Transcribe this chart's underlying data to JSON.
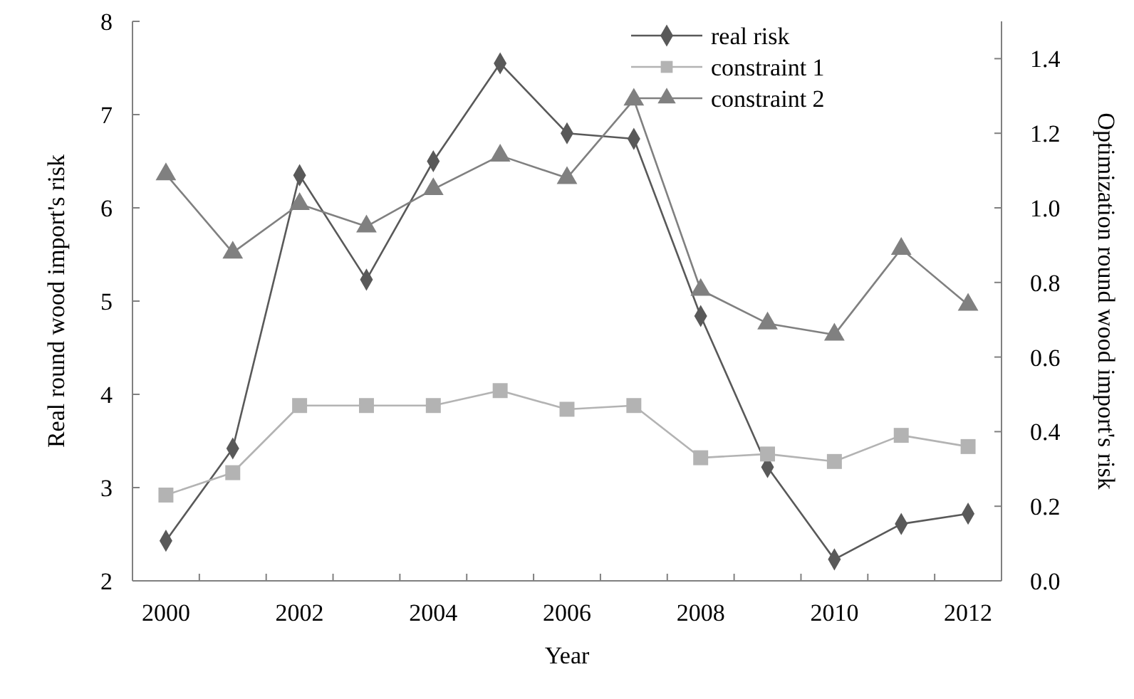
{
  "chart_data": {
    "type": "line",
    "xlabel": "Year",
    "ylabel": "Real round wood import's risk",
    "y2label": "Optimization round wood import's risk",
    "categories": [
      "2000",
      null,
      "2002",
      null,
      "2004",
      null,
      "2006",
      null,
      "2008",
      null,
      "2010",
      null,
      "2012"
    ],
    "series": [
      {
        "name": "real risk",
        "color": "#595959",
        "marker": "diamond",
        "values": [
          2.43,
          3.42,
          6.35,
          5.23,
          6.5,
          7.55,
          6.8,
          6.74,
          4.84,
          3.22,
          2.23,
          2.61,
          2.72
        ]
      },
      {
        "name": "constraint 1",
        "color": "#b3b3b3",
        "marker": "square",
        "axis": "y2",
        "values": [
          0.23,
          0.29,
          0.47,
          0.47,
          0.47,
          0.51,
          0.46,
          0.47,
          0.33,
          0.34,
          0.32,
          0.39,
          0.36
        ]
      },
      {
        "name": "constraint 2",
        "color": "#808080",
        "marker": "triangle",
        "axis": "y2",
        "values": [
          1.09,
          0.88,
          1.01,
          0.95,
          1.05,
          1.14,
          1.08,
          1.29,
          0.78,
          0.69,
          0.66,
          0.89,
          0.74
        ]
      }
    ],
    "ylim": [
      2,
      8
    ],
    "yticks": [
      2,
      3,
      4,
      5,
      6,
      7,
      8
    ],
    "y2lim": [
      0,
      1.5
    ],
    "y2ticks": [
      {
        "value": 0,
        "label": "0.0"
      },
      {
        "value": 0.2,
        "label": "0.2"
      },
      {
        "value": 0.4,
        "label": "0.4"
      },
      {
        "value": 0.6,
        "label": "0.6"
      },
      {
        "value": 0.8,
        "label": "0.8"
      },
      {
        "value": 1,
        "label": "1.0"
      },
      {
        "value": 1.2,
        "label": "1.2"
      },
      {
        "value": 1.4,
        "label": "1.4"
      }
    ],
    "grid": false,
    "legend": "top right",
    "line_style": "solid"
  }
}
